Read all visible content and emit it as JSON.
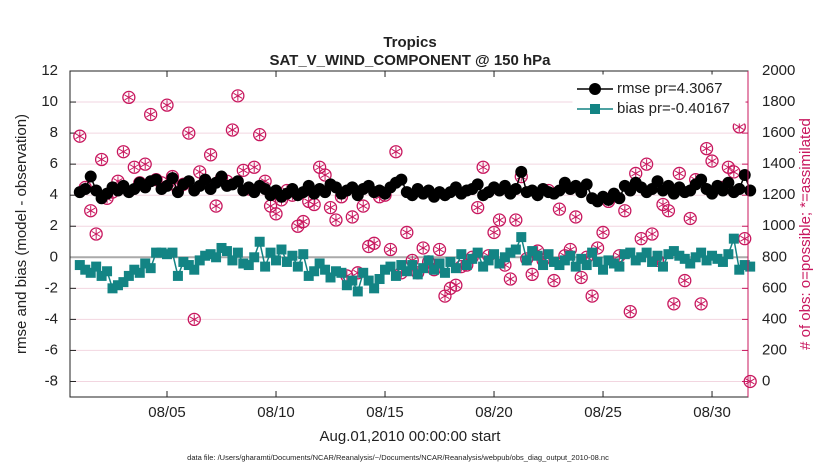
{
  "chart_data": {
    "type": "line",
    "title": "Tropics",
    "subtitle": "SAT_V_WIND_COMPONENT @ 150 hPa",
    "x_label": "Aug.01,2010 00:00:00 start",
    "y_label": "rmse and bias (model - observation)",
    "y2_label": "# of obs: o=possible; *=assimilated",
    "footnote": "data file: /Users/gharamti/Documents/NCAR/Reanalysis/~/Documents/NCAR/Reanalysis/webpub/obs_diag_output_2010-08.nc",
    "x": [
      1,
      1.25,
      1.5,
      1.75,
      2,
      2.25,
      2.5,
      2.75,
      3,
      3.25,
      3.5,
      3.75,
      4,
      4.25,
      4.5,
      4.75,
      5,
      5.25,
      5.5,
      5.75,
      6,
      6.25,
      6.5,
      6.75,
      7,
      7.25,
      7.5,
      7.75,
      8,
      8.25,
      8.5,
      8.75,
      9,
      9.25,
      9.5,
      9.75,
      10,
      10.25,
      10.5,
      10.75,
      11,
      11.25,
      11.5,
      11.75,
      12,
      12.25,
      12.5,
      12.75,
      13,
      13.25,
      13.5,
      13.75,
      14,
      14.25,
      14.5,
      14.75,
      15,
      15.25,
      15.5,
      15.75,
      16,
      16.25,
      16.5,
      16.75,
      17,
      17.25,
      17.5,
      17.75,
      18,
      18.25,
      18.5,
      18.75,
      19,
      19.25,
      19.5,
      19.75,
      20,
      20.25,
      20.5,
      20.75,
      21,
      21.25,
      21.5,
      21.75,
      22,
      22.25,
      22.5,
      22.75,
      23,
      23.25,
      23.5,
      23.75,
      24,
      24.25,
      24.5,
      24.75,
      25,
      25.25,
      25.5,
      25.75,
      26,
      26.25,
      26.5,
      26.75,
      27,
      27.25,
      27.5,
      27.75,
      28,
      28.25,
      28.5,
      28.75,
      29,
      29.25,
      29.5,
      29.75,
      30,
      30.25,
      30.5,
      30.75,
      31,
      31.25,
      31.5,
      31.75
    ],
    "series": [
      {
        "name": "rmse pr=4.3067",
        "color": "#000000",
        "marker": "circle",
        "values": [
          4.2,
          4.4,
          5.2,
          4.3,
          3.8,
          4.1,
          4.5,
          4.3,
          4.6,
          4.2,
          4.4,
          4.8,
          4.5,
          4.9,
          5.0,
          4.4,
          4.6,
          5.1,
          4.2,
          4.7,
          4.9,
          4.3,
          4.6,
          5.0,
          4.4,
          4.8,
          5.2,
          4.6,
          4.7,
          4.9,
          4.3,
          4.5,
          4.2,
          4.6,
          4.4,
          4.0,
          4.3,
          3.9,
          4.1,
          4.4,
          4.0,
          4.2,
          4.6,
          4.1,
          4.4,
          4.2,
          4.7,
          4.5,
          4.1,
          4.3,
          4.5,
          4.0,
          4.4,
          4.6,
          4.2,
          4.3,
          4.1,
          4.5,
          4.8,
          5.0,
          4.2,
          4.0,
          4.4,
          4.1,
          4.3,
          3.9,
          4.2,
          4.0,
          4.2,
          4.5,
          4.1,
          4.3,
          4.4,
          4.7,
          4.0,
          4.2,
          4.5,
          4.3,
          4.6,
          4.1,
          4.4,
          5.5,
          4.2,
          4.3,
          4.0,
          4.4,
          4.2,
          4.1,
          4.3,
          4.8,
          4.4,
          4.6,
          4.2,
          4.7,
          3.8,
          3.6,
          3.9,
          3.7,
          4.1,
          3.8,
          4.6,
          4.3,
          4.8,
          4.5,
          4.2,
          4.4,
          4.9,
          4.3,
          4.6,
          4.1,
          4.5,
          4.2,
          4.3,
          4.7,
          5.0,
          4.4,
          4.1,
          4.6,
          4.3,
          4.8,
          4.2,
          4.4,
          5.3,
          4.3
        ]
      },
      {
        "name": "bias pr=-0.40167",
        "color": "#138484",
        "marker": "square",
        "values": [
          -0.5,
          -0.8,
          -1.0,
          -0.6,
          -1.2,
          -0.9,
          -2.0,
          -1.8,
          -1.6,
          -1.2,
          -0.8,
          -1.0,
          -0.4,
          -0.7,
          0.3,
          0.3,
          0.2,
          0.3,
          -1.2,
          -0.3,
          -0.5,
          -0.8,
          -0.2,
          0.1,
          0.2,
          0.0,
          0.6,
          0.4,
          -0.2,
          0.3,
          -0.4,
          -0.5,
          0.0,
          1.0,
          -0.6,
          0.3,
          -0.2,
          0.5,
          -0.3,
          0.1,
          -0.6,
          0.2,
          -1.2,
          -0.9,
          -0.4,
          -0.8,
          -1.3,
          -0.9,
          -1.0,
          -1.8,
          -1.5,
          -2.2,
          -1.0,
          -1.5,
          -2.0,
          -1.4,
          -0.8,
          -0.6,
          -1.2,
          -0.5,
          -0.9,
          -0.5,
          -1.1,
          -0.7,
          -0.2,
          -0.8,
          -0.4,
          -1.0,
          -0.3,
          -0.7,
          0.2,
          -0.5,
          -0.1,
          0.3,
          -0.6,
          -0.2,
          0.2,
          -0.4,
          0.0,
          0.3,
          0.5,
          1.3,
          -0.2,
          0.4,
          0.1,
          -0.5,
          0.2,
          -0.3,
          -0.5,
          -0.2,
          0.1,
          -0.6,
          -0.1,
          -0.5,
          0.3,
          -0.3,
          -0.8,
          -0.2,
          -0.4,
          -0.6,
          0.2,
          0.3,
          -0.2,
          0.0,
          0.3,
          -0.3,
          0.1,
          -0.6,
          0.2,
          0.4,
          0.1,
          -0.1,
          -0.4,
          0.0,
          0.3,
          -0.2,
          0.1,
          -0.1,
          -0.3,
          0.2,
          1.2,
          -0.8,
          -0.5,
          -0.6
        ]
      },
      {
        "color": "#c8175e",
        "marker": "circle-asterisk",
        "axis": "y2",
        "values": [
          1580,
          1250,
          1100,
          950,
          1430,
          1180,
          1220,
          1290,
          1480,
          1830,
          1380,
          1280,
          1400,
          1720,
          1300,
          1280,
          1780,
          1320,
          1240,
          1270,
          1600,
          400,
          1350,
          1290,
          1460,
          1130,
          1310,
          1290,
          1620,
          1840,
          1360,
          1240,
          1380,
          1590,
          1290,
          1130,
          1080,
          1170,
          1230,
          1200,
          1000,
          1030,
          1160,
          1140,
          1380,
          1330,
          1120,
          1040,
          1190,
          680,
          1060,
          700,
          1130,
          870,
          890,
          1190,
          1200,
          850,
          1480,
          700,
          960,
          780,
          700,
          860,
          770,
          720,
          850,
          550,
          600,
          620,
          740,
          750,
          800,
          1120,
          1380,
          810,
          960,
          1040,
          750,
          660,
          1040,
          1320,
          790,
          690,
          840,
          780,
          1230,
          650,
          1110,
          810,
          850,
          1060,
          670,
          800,
          550,
          860,
          960,
          1160,
          1200,
          810,
          1100,
          450,
          1340,
          920,
          1400,
          950,
          780,
          1140,
          1100,
          500,
          1340,
          650,
          1050,
          1300,
          500,
          1500,
          1420,
          1850,
          1250,
          1380,
          1350,
          1640,
          920,
          0
        ]
      }
    ],
    "xlim": [
      0.55,
      31.65
    ],
    "xticks": [
      {
        "value": 5,
        "label": "08/05"
      },
      {
        "value": 10,
        "label": "08/10"
      },
      {
        "value": 15,
        "label": "08/15"
      },
      {
        "value": 20,
        "label": "08/20"
      },
      {
        "value": 25,
        "label": "08/25"
      },
      {
        "value": 30,
        "label": "08/30"
      }
    ],
    "ylim": [
      -9,
      12
    ],
    "yticks": [
      -8,
      -6,
      -4,
      -2,
      0,
      2,
      4,
      6,
      8,
      10,
      12
    ],
    "y2lim": [
      -100,
      2000
    ],
    "y2ticks": [
      0,
      200,
      400,
      600,
      800,
      1000,
      1200,
      1400,
      1600,
      1800,
      2000
    ],
    "y2_color": "#c8175e",
    "reference_line": 0,
    "grid": true,
    "legend": "upper right"
  }
}
